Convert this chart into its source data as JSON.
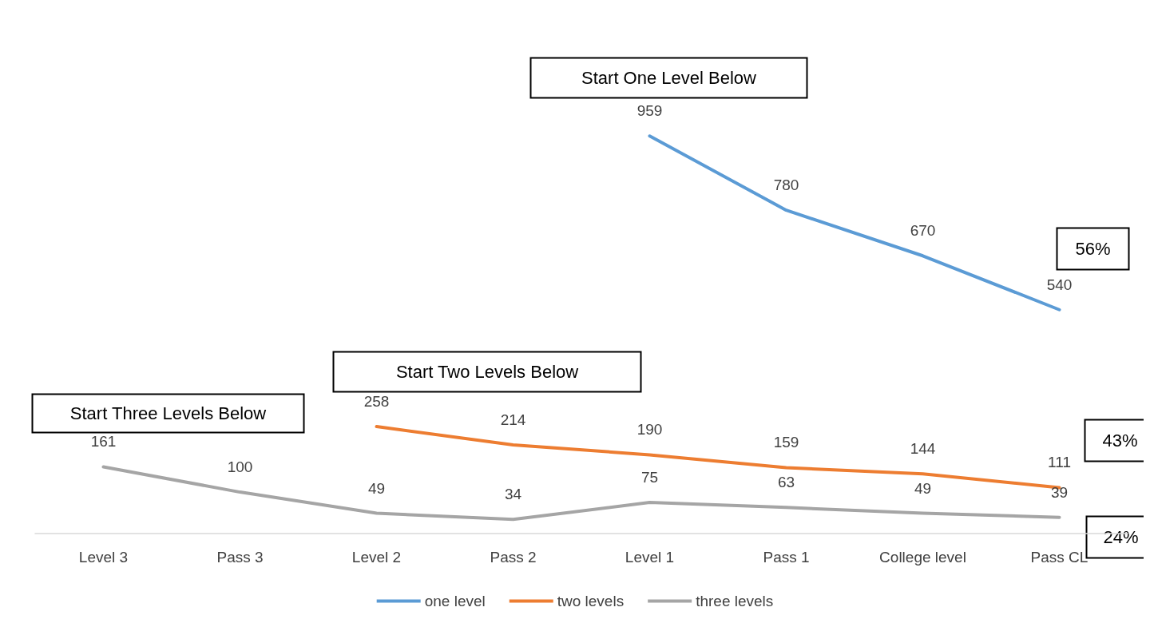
{
  "chart_data": {
    "type": "line",
    "categories": [
      "Level 3",
      "Pass 3",
      "Level 2",
      "Pass 2",
      "Level 1",
      "Pass 1",
      "College level",
      "Pass CL"
    ],
    "series": [
      {
        "name": "one level",
        "color": "#5b9bd5",
        "values": [
          null,
          null,
          null,
          null,
          959,
          780,
          670,
          540
        ]
      },
      {
        "name": "two levels",
        "color": "#ed7d31",
        "values": [
          null,
          null,
          258,
          214,
          190,
          159,
          144,
          111
        ]
      },
      {
        "name": "three levels",
        "color": "#a5a5a5",
        "values": [
          161,
          100,
          49,
          34,
          75,
          63,
          49,
          39
        ]
      }
    ],
    "annotations": [
      "Start One Level Below",
      "Start Two Levels Below",
      "Start Three Levels Below",
      "56%",
      "43%",
      "24%"
    ],
    "data_labels": true,
    "legend": "bottom",
    "grid": false,
    "marker": "none",
    "line_style": "solid"
  }
}
